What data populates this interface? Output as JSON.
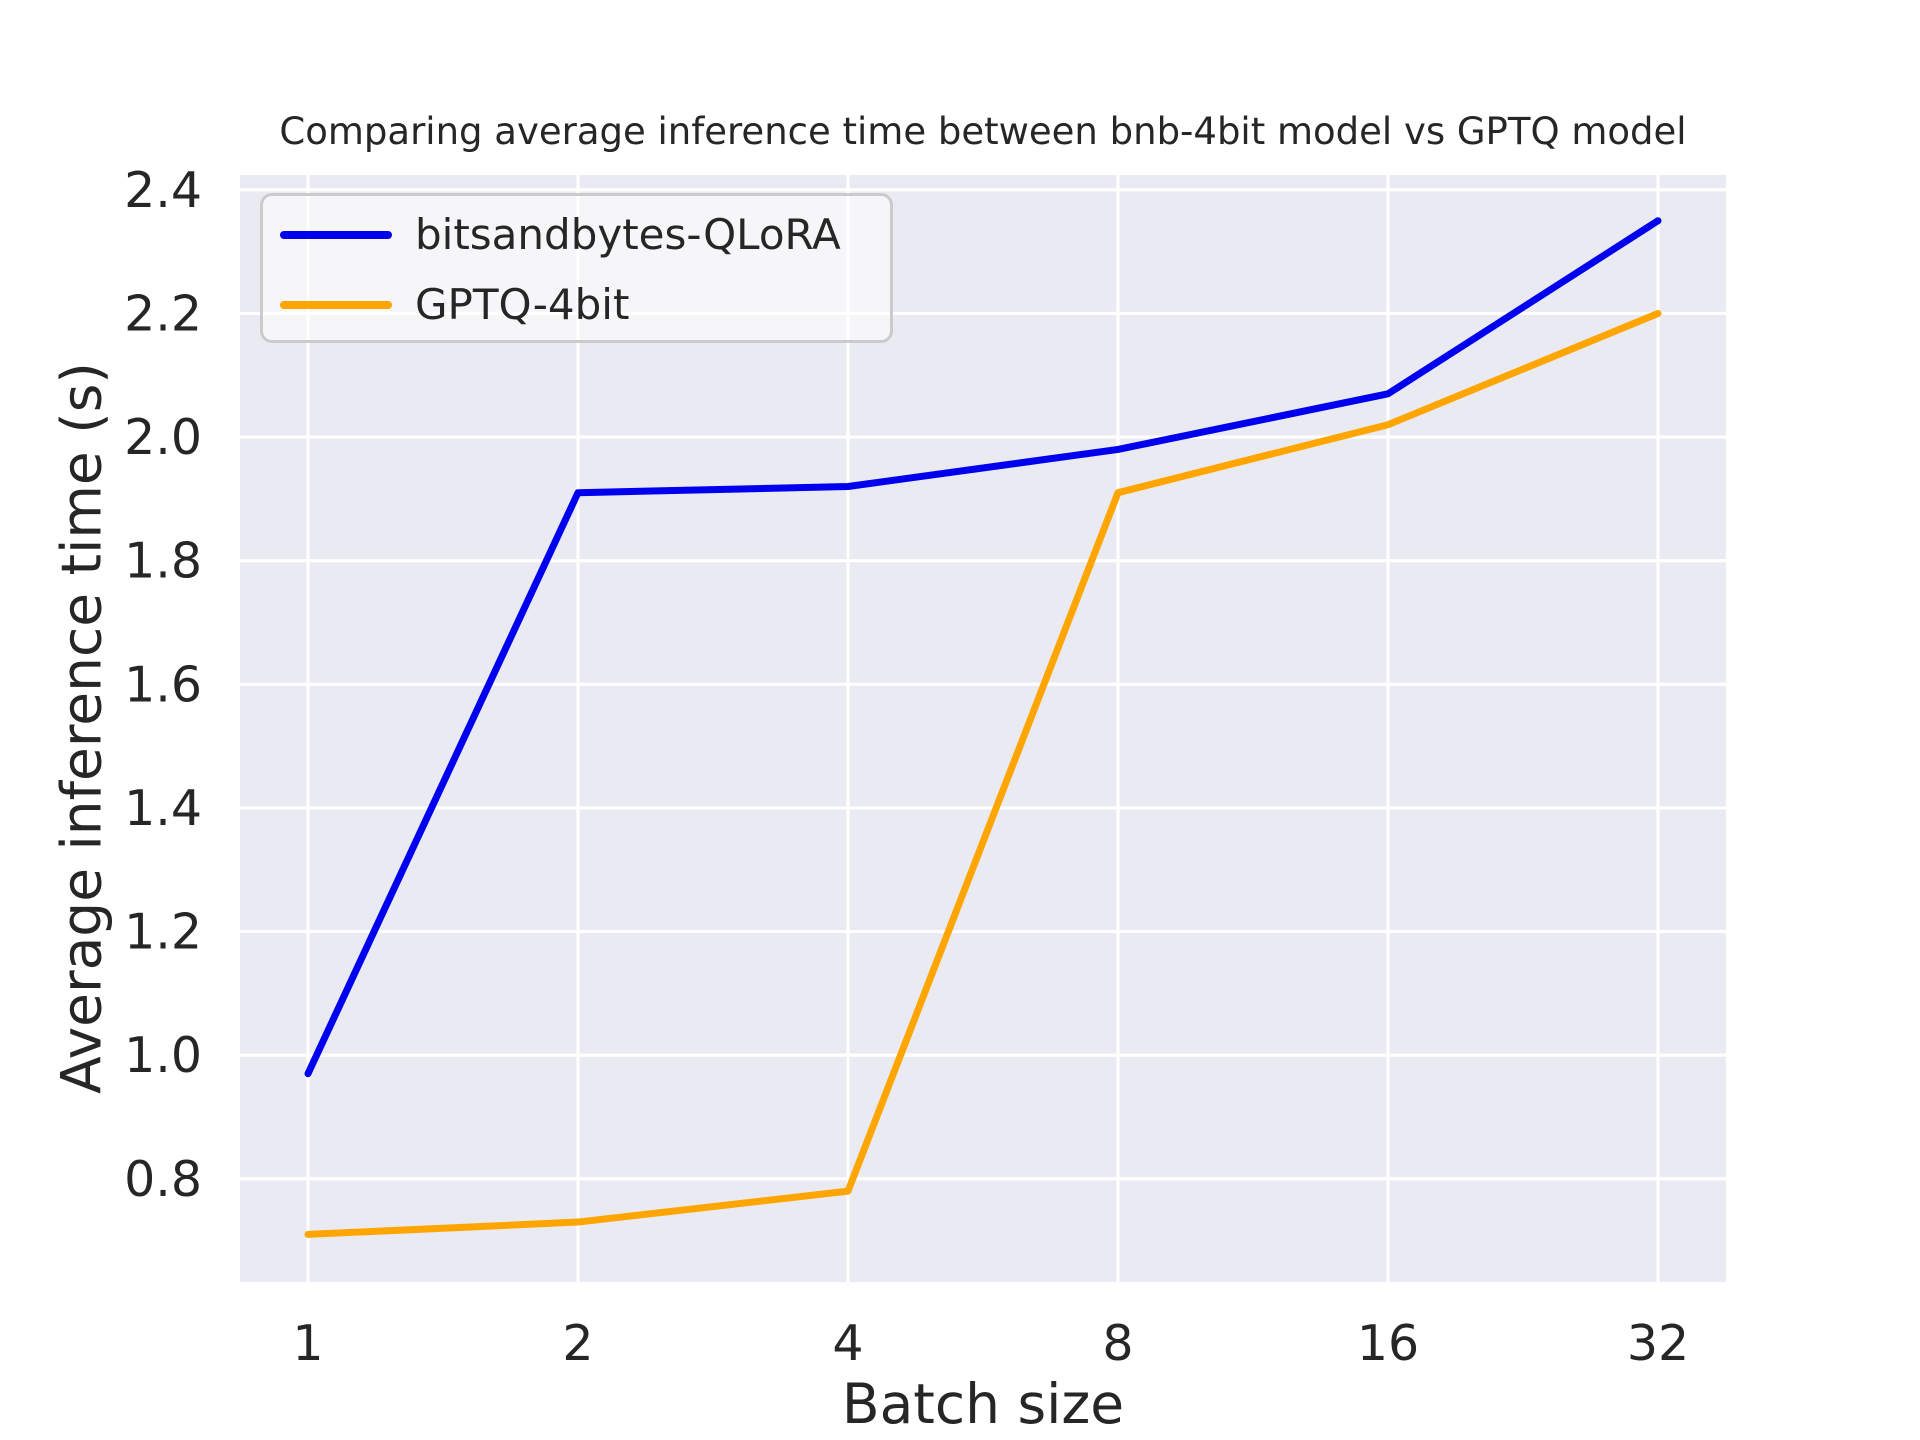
{
  "chart_data": {
    "type": "line",
    "title": "Comparing average inference time between bnb-4bit model vs GPTQ model",
    "xlabel": "Batch size",
    "ylabel": "Average inference time (s)",
    "x_tick_labels": [
      "1",
      "2",
      "4",
      "8",
      "16",
      "32"
    ],
    "y_tick_labels": [
      "0.8",
      "1.0",
      "1.2",
      "1.4",
      "1.6",
      "1.8",
      "2.0",
      "2.2",
      "2.4"
    ],
    "y_ticks": [
      0.8,
      1.0,
      1.2,
      1.4,
      1.6,
      1.8,
      2.0,
      2.2,
      2.4
    ],
    "ylim": [
      0.633,
      2.424
    ],
    "grid": true,
    "legend_position": "upper left",
    "categories": [
      1,
      2,
      4,
      8,
      16,
      32
    ],
    "series": [
      {
        "name": "bitsandbytes-QLoRA",
        "color": "#0000ee",
        "values": [
          0.97,
          1.91,
          1.92,
          1.98,
          2.07,
          2.35
        ]
      },
      {
        "name": "GPTQ-4bit",
        "color": "#ffa500",
        "values": [
          0.71,
          0.73,
          0.78,
          1.91,
          2.02,
          2.2
        ]
      }
    ],
    "colors": {
      "plot_background": "#eaeaf2",
      "gridline": "#ffffff",
      "text": "#262626",
      "legend_border": "#cbcbcb"
    }
  }
}
